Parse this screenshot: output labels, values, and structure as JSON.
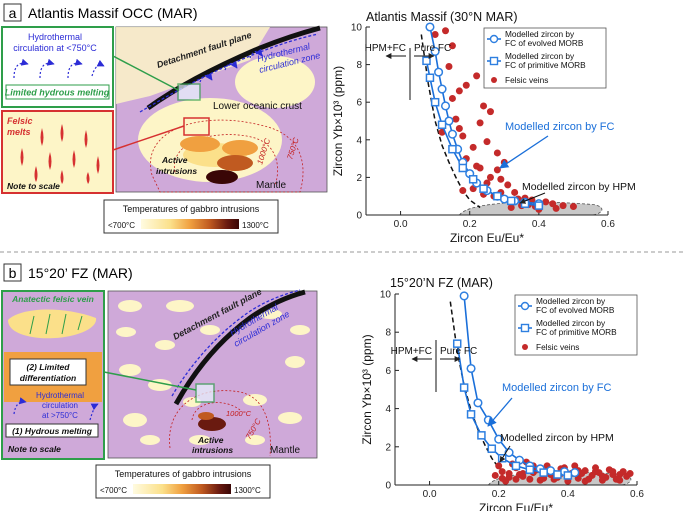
{
  "panel_a": {
    "label": "a",
    "title": "Atlantis Massif OCC (MAR)",
    "schematic": {
      "inset_top_text": [
        "Hydrothermal",
        "circulation at <750°C"
      ],
      "inset_top_caption": "Limited hydrous melting",
      "inset_bottom_title": [
        "Felsic",
        "melts"
      ],
      "inset_bottom_note": "Note to scale",
      "fault_label": "Detachment fault plane",
      "circ_zone_label": [
        "Hydrothermal",
        "circulation zone"
      ],
      "crust_label": "Lower oceanic crust",
      "active_label": [
        "Active",
        "intrusions"
      ],
      "mantle_label": "Mantle",
      "iso_1000": "1000°C",
      "iso_750": "750°C"
    },
    "legend": {
      "title": "Temperatures of gabbro intrusions",
      "min_label": "<700°C",
      "max_label": "1300°C",
      "colors": [
        "#fffbe0",
        "#fbe08a",
        "#f0a040",
        "#c05a20",
        "#6a1a10",
        "#3a0606"
      ]
    },
    "chart_title": "Atlantis Massif (30°N MAR)",
    "chart_data": {
      "type": "scatter",
      "title": "Atlantis Massif (30°N MAR)",
      "xlabel": "Zircon Eu/Eu*",
      "ylabel": "Zircon Yb×10³ (ppm)",
      "xlim": [
        -0.1,
        0.6
      ],
      "ylim": [
        0,
        10
      ],
      "xticks": [
        "0.0",
        "0.2",
        "0.4",
        "0.6"
      ],
      "yticks": [
        "0",
        "2",
        "4",
        "6",
        "8",
        "10"
      ],
      "legend": [
        "Modelled zircon by FC of evolved MORB",
        "Modelled zircon by FC of primitive MORB",
        "Felsic veins"
      ],
      "series": [
        {
          "name": "Modelled zircon by FC of evolved MORB",
          "style": "circle-line",
          "x": [
            0.085,
            0.1,
            0.11,
            0.12,
            0.13,
            0.14,
            0.15,
            0.165,
            0.18,
            0.2,
            0.22,
            0.25,
            0.28,
            0.3,
            0.33,
            0.36,
            0.4
          ],
          "y": [
            10.0,
            8.7,
            7.6,
            6.7,
            5.8,
            5.0,
            4.3,
            3.5,
            2.8,
            2.2,
            1.7,
            1.3,
            1.0,
            0.85,
            0.75,
            0.68,
            0.6
          ]
        },
        {
          "name": "Modelled zircon by FC of primitive MORB",
          "style": "square-line",
          "x": [
            0.075,
            0.085,
            0.1,
            0.12,
            0.15,
            0.18,
            0.21,
            0.24,
            0.28,
            0.32,
            0.36,
            0.4
          ],
          "y": [
            8.2,
            7.3,
            6.0,
            4.8,
            3.5,
            2.5,
            1.9,
            1.4,
            1.0,
            0.75,
            0.6,
            0.5
          ]
        },
        {
          "name": "Modelled zircon by HPM",
          "style": "dashed",
          "x": [
            0.06,
            0.08,
            0.1,
            0.12,
            0.14,
            0.16,
            0.18,
            0.2,
            0.23
          ],
          "y": [
            9.6,
            7.0,
            5.0,
            3.7,
            2.8,
            2.0,
            1.3,
            0.8,
            0.4
          ]
        },
        {
          "name": "Felsic veins",
          "style": "dot",
          "x": [
            0.1,
            0.13,
            0.15,
            0.17,
            0.19,
            0.22,
            0.24,
            0.26,
            0.17,
            0.18,
            0.21,
            0.23,
            0.25,
            0.28,
            0.3,
            0.2,
            0.22,
            0.26,
            0.29,
            0.31,
            0.18,
            0.21,
            0.24,
            0.27,
            0.33,
            0.36,
            0.38,
            0.42,
            0.44,
            0.47,
            0.32,
            0.35,
            0.4,
            0.45,
            0.5,
            0.14,
            0.15,
            0.16,
            0.12,
            0.28,
            0.25,
            0.29,
            0.34,
            0.37,
            0.39,
            0.19,
            0.23
          ],
          "y": [
            9.6,
            9.8,
            9.0,
            6.6,
            6.9,
            7.4,
            5.8,
            5.5,
            4.6,
            4.2,
            3.6,
            4.9,
            3.9,
            3.3,
            2.8,
            2.2,
            2.6,
            2.0,
            1.9,
            1.6,
            1.3,
            1.4,
            1.1,
            1.0,
            1.2,
            0.9,
            0.8,
            0.7,
            0.6,
            0.5,
            0.4,
            0.5,
            0.3,
            0.35,
            0.45,
            7.9,
            6.2,
            5.1,
            4.4,
            2.4,
            1.7,
            1.2,
            0.85,
            0.55,
            0.45,
            3.0,
            2.5
          ]
        }
      ],
      "annotations": [
        "HPM+FC",
        "Pure FC",
        "Modelled zircon by FC",
        "Modelled zircon by HPM"
      ]
    }
  },
  "panel_b": {
    "label": "b",
    "title": "15°20’ FZ (MAR)",
    "schematic": {
      "inset_vein": "Anatectic felsic vein",
      "inset_box2": [
        "(2) Limited",
        "differentiation"
      ],
      "inset_circ": [
        "Hydrothermal",
        "circulation",
        "at >750°C"
      ],
      "inset_box1": "(1) Hydrous melting",
      "inset_note": "Note to scale",
      "fault_label": "Detachment fault plane",
      "circ_zone_label": [
        "Hydrothermal",
        "circulation zone"
      ],
      "active_label": [
        "Active",
        "intrusions"
      ],
      "mantle_label": "Mantle",
      "iso_1000": "1000°C",
      "iso_750": "750°C"
    },
    "legend": {
      "title": "Temperatures of gabbro intrusions",
      "min_label": "<700°C",
      "max_label": "1300°C",
      "colors": [
        "#fffbe0",
        "#fbe08a",
        "#f0a040",
        "#c05a20",
        "#6a1a10",
        "#3a0606"
      ]
    },
    "chart_title": "15°20’N FZ (MAR)",
    "chart_data": {
      "type": "scatter",
      "title": "15°20’N FZ (MAR)",
      "xlabel": "Zircon Eu/Eu*",
      "ylabel": "Zircon Yb×10³ (ppm)",
      "xlim": [
        -0.1,
        0.6
      ],
      "ylim": [
        0,
        10
      ],
      "xticks": [
        "0.0",
        "0.2",
        "0.4",
        "0.6"
      ],
      "yticks": [
        "0",
        "2",
        "4",
        "6",
        "8",
        "10"
      ],
      "legend": [
        "Modelled zircon by FC of evolved MORB",
        "Modelled zircon by FC of primitive MORB",
        "Felsic veins"
      ],
      "series": [
        {
          "name": "Modelled zircon by FC of evolved MORB",
          "style": "circle-line",
          "x": [
            0.1,
            0.12,
            0.14,
            0.17,
            0.2,
            0.23,
            0.26,
            0.29,
            0.32,
            0.35,
            0.39,
            0.42
          ],
          "y": [
            9.9,
            6.1,
            4.3,
            3.4,
            2.4,
            1.7,
            1.3,
            1.0,
            0.85,
            0.75,
            0.7,
            0.65
          ]
        },
        {
          "name": "Modelled zircon by FC of primitive MORB",
          "style": "square-line",
          "x": [
            0.08,
            0.1,
            0.12,
            0.15,
            0.18,
            0.21,
            0.25,
            0.29,
            0.33,
            0.37,
            0.4
          ],
          "y": [
            7.4,
            5.1,
            3.7,
            2.6,
            1.9,
            1.4,
            1.0,
            0.8,
            0.65,
            0.55,
            0.5
          ]
        },
        {
          "name": "Modelled zircon by HPM",
          "style": "dashed",
          "x": [
            0.06,
            0.08,
            0.1,
            0.12,
            0.14,
            0.16,
            0.18,
            0.2
          ],
          "y": [
            9.6,
            7.0,
            5.2,
            3.9,
            2.9,
            2.1,
            1.4,
            0.9
          ]
        },
        {
          "name": "Felsic veins",
          "style": "dot",
          "x": [
            0.19,
            0.21,
            0.23,
            0.25,
            0.27,
            0.29,
            0.31,
            0.33,
            0.35,
            0.37,
            0.39,
            0.41,
            0.43,
            0.45,
            0.47,
            0.49,
            0.51,
            0.53,
            0.55,
            0.57,
            0.2,
            0.22,
            0.24,
            0.26,
            0.28,
            0.3,
            0.32,
            0.34,
            0.36,
            0.38,
            0.4,
            0.42,
            0.44,
            0.46,
            0.48,
            0.5,
            0.52,
            0.54,
            0.56,
            0.21,
            0.25,
            0.3,
            0.35,
            0.4,
            0.45,
            0.5,
            0.55,
            0.58,
            0.23,
            0.27,
            0.33,
            0.38,
            0.43,
            0.48,
            0.53
          ],
          "y": [
            0.5,
            0.7,
            0.4,
            0.9,
            0.6,
            0.3,
            0.8,
            0.5,
            0.7,
            0.4,
            0.9,
            0.6,
            0.35,
            0.75,
            0.5,
            0.65,
            0.4,
            0.7,
            0.55,
            0.45,
            1.0,
            0.2,
            1.1,
            0.55,
            1.2,
            0.65,
            0.25,
            1.0,
            0.3,
            0.85,
            0.2,
            1.0,
            0.6,
            0.3,
            0.9,
            0.25,
            0.8,
            0.3,
            0.7,
            0.35,
            0.3,
            1.0,
            0.55,
            0.45,
            0.2,
            0.45,
            0.25,
            0.6,
            0.6,
            0.45,
            0.35,
            0.6,
            0.75,
            0.7,
            0.55
          ]
        }
      ],
      "annotations": [
        "HPM+FC",
        "Pure FC",
        "Modelled zircon by FC",
        "Modelled zircon by HPM"
      ]
    }
  },
  "colors": {
    "model_line": "#1a6fd9",
    "model_marker": "#2e7fe0",
    "felsic": "#c42a2a",
    "hpm_fill": "#c8c8c8",
    "crust_purple": "#cfa9d9",
    "crust_cream": "#fdf5c7",
    "inset_green": "#2e9e4a",
    "inset_red": "#d63131",
    "fault_blue": "#2c2cd6",
    "iso_red": "#c42020"
  }
}
